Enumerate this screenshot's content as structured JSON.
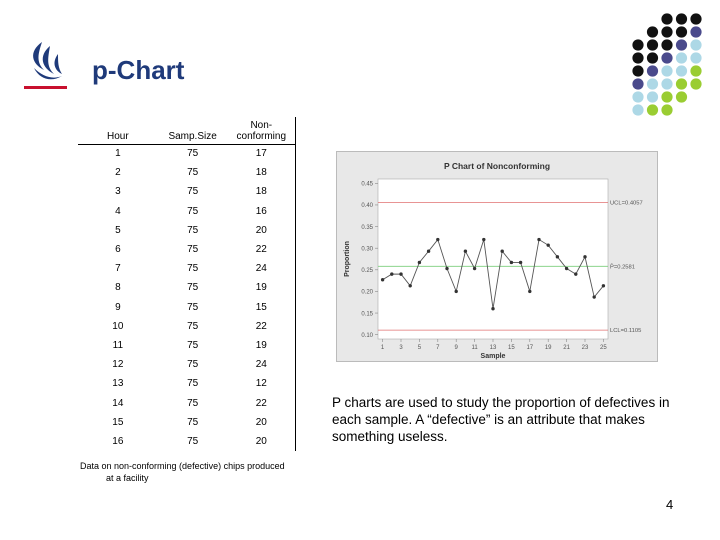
{
  "slide": {
    "title": "p-Chart",
    "description": "P charts are used to study the proportion of defectives in each sample. A “defective” is an attribute that makes something useless.",
    "caption_line1": "Data on non-conforming (defective) chips produced",
    "caption_line2": "at a facility",
    "page_number": "4"
  },
  "table": {
    "headers": [
      "Hour",
      "Samp.Size",
      "Non-conforming"
    ],
    "rows": [
      [
        "1",
        "75",
        "17"
      ],
      [
        "2",
        "75",
        "18"
      ],
      [
        "3",
        "75",
        "18"
      ],
      [
        "4",
        "75",
        "16"
      ],
      [
        "5",
        "75",
        "20"
      ],
      [
        "6",
        "75",
        "22"
      ],
      [
        "7",
        "75",
        "24"
      ],
      [
        "8",
        "75",
        "19"
      ],
      [
        "9",
        "75",
        "15"
      ],
      [
        "10",
        "75",
        "22"
      ],
      [
        "11",
        "75",
        "19"
      ],
      [
        "12",
        "75",
        "24"
      ],
      [
        "13",
        "75",
        "12"
      ],
      [
        "14",
        "75",
        "22"
      ],
      [
        "15",
        "75",
        "20"
      ],
      [
        "16",
        "75",
        "20"
      ]
    ]
  },
  "colors": {
    "title": "#1f3a7a",
    "logo_red": "#c8102e",
    "dot_palette": [
      "#111111",
      "#4a4a8c",
      "#add8e6",
      "#9acd32"
    ],
    "center_line": "#7ccd7c",
    "limit_line": "#e07070",
    "data_line": "#555555"
  },
  "chart_data": {
    "type": "line",
    "title": "P Chart of Nonconforming",
    "xlabel": "Sample",
    "ylabel": "Proportion",
    "x": [
      1,
      2,
      3,
      4,
      5,
      6,
      7,
      8,
      9,
      10,
      11,
      12,
      13,
      14,
      15,
      16,
      17,
      18,
      19,
      20,
      21,
      22,
      23,
      24,
      25
    ],
    "values": [
      0.227,
      0.24,
      0.24,
      0.213,
      0.267,
      0.293,
      0.32,
      0.253,
      0.2,
      0.293,
      0.253,
      0.32,
      0.16,
      0.293,
      0.267,
      0.267,
      0.2,
      0.32,
      0.307,
      0.28,
      0.253,
      0.24,
      0.28,
      0.187,
      0.213
    ],
    "xticks": [
      "1",
      "3",
      "5",
      "7",
      "9",
      "11",
      "13",
      "15",
      "17",
      "19",
      "21",
      "23",
      "25"
    ],
    "yticks": [
      "0.10",
      "0.15",
      "0.20",
      "0.25",
      "0.30",
      "0.35",
      "0.40",
      "0.45"
    ],
    "ylim": [
      0.09,
      0.46
    ],
    "xlim": [
      0.5,
      25.5
    ],
    "ucl": 0.4057,
    "center": 0.2581,
    "lcl": 0.1105,
    "ucl_label": "UCL=0.4057",
    "center_label": "P̄=0.2581",
    "lcl_label": "LCL=0.1105"
  }
}
